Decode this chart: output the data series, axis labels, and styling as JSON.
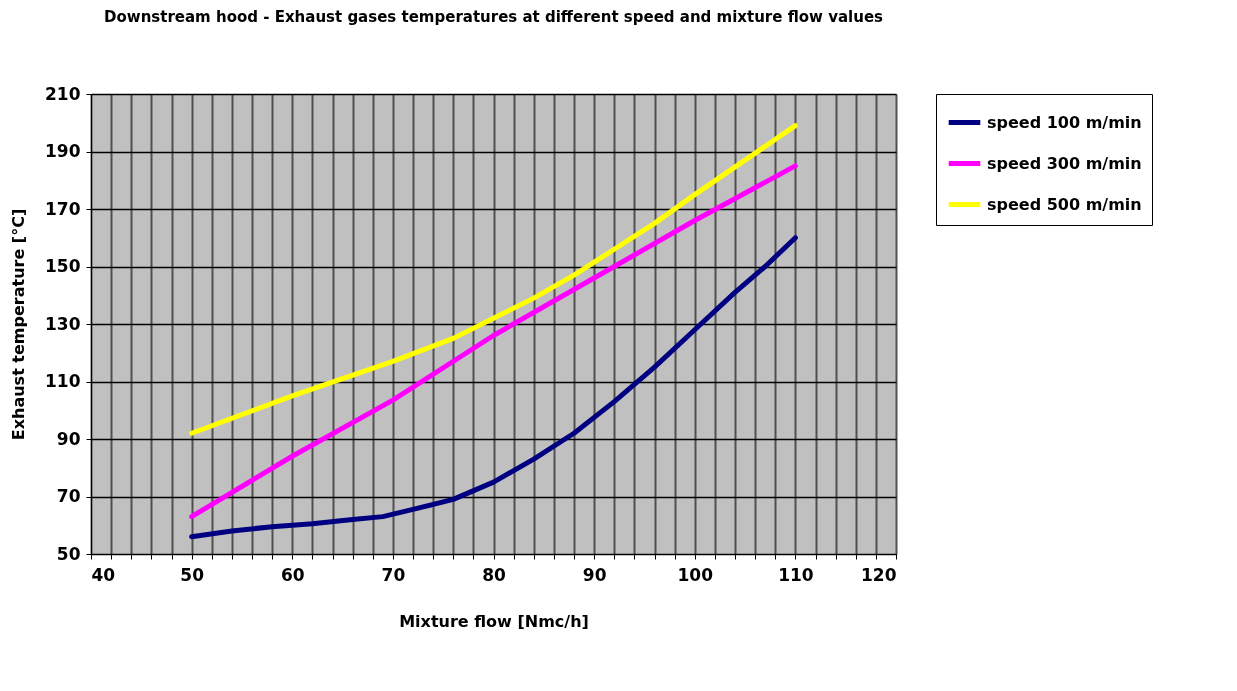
{
  "chart_data": {
    "type": "line",
    "title": "Downstream hood - Exhaust gases temperatures at different speed and mixture flow values",
    "xlabel": "Mixture flow [Nmc/h]",
    "ylabel": "Exhaust temperature [°C]",
    "xlim": [
      40,
      120
    ],
    "ylim": [
      50,
      210
    ],
    "xticks": [
      40,
      {
        "value": 42,
        "label": null
      },
      {
        "value": 44,
        "label": null
      },
      {
        "value": 46,
        "label": null
      },
      {
        "value": 48,
        "label": null
      },
      50,
      {
        "value": 52,
        "label": null
      },
      {
        "value": 54,
        "label": null
      },
      {
        "value": 56,
        "label": null
      },
      {
        "value": 58,
        "label": null
      },
      60,
      {
        "value": 62,
        "label": null
      },
      {
        "value": 64,
        "label": null
      },
      {
        "value": 66,
        "label": null
      },
      {
        "value": 68,
        "label": null
      },
      70,
      {
        "value": 72,
        "label": null
      },
      {
        "value": 74,
        "label": null
      },
      {
        "value": 76,
        "label": null
      },
      {
        "value": 78,
        "label": null
      },
      80,
      {
        "value": 82,
        "label": null
      },
      {
        "value": 84,
        "label": null
      },
      {
        "value": 86,
        "label": null
      },
      {
        "value": 88,
        "label": null
      },
      90,
      {
        "value": 92,
        "label": null
      },
      {
        "value": 94,
        "label": null
      },
      {
        "value": 96,
        "label": null
      },
      {
        "value": 98,
        "label": null
      },
      100,
      {
        "value": 102,
        "label": null
      },
      {
        "value": 104,
        "label": null
      },
      {
        "value": 106,
        "label": null
      },
      {
        "value": 108,
        "label": null
      },
      110,
      {
        "value": 112,
        "label": null
      },
      {
        "value": 114,
        "label": null
      },
      {
        "value": 116,
        "label": null
      },
      {
        "value": 118,
        "label": null
      },
      120
    ],
    "yticks": [
      50,
      70,
      90,
      110,
      130,
      150,
      170,
      190,
      210
    ],
    "grid": true,
    "legend": "right",
    "line_style": "solid",
    "series": [
      {
        "name": "speed 100 m/min",
        "color": "#000080",
        "x": [
          50,
          54,
          58,
          62,
          66,
          69,
          72,
          76,
          80,
          84,
          88,
          92,
          96,
          100,
          104,
          107,
          110
        ],
        "values": [
          56,
          58,
          59.5,
          60.5,
          62,
          63,
          65.5,
          69,
          75,
          83,
          92,
          103,
          115,
          128,
          141,
          150,
          160
        ]
      },
      {
        "name": "speed 300 m/min",
        "color": "#ff00ff",
        "x": [
          50,
          60,
          70,
          80,
          90,
          100,
          110
        ],
        "values": [
          63,
          84,
          103.5,
          126,
          146,
          166,
          185
        ]
      },
      {
        "name": "speed 500 m/min",
        "color": "#ffff00",
        "x": [
          50,
          60,
          65,
          70,
          76,
          80,
          84,
          88,
          92,
          96,
          100,
          105,
          110
        ],
        "values": [
          92,
          105,
          111,
          117,
          125,
          132,
          139,
          147,
          156,
          165,
          175,
          187,
          199
        ]
      }
    ]
  }
}
